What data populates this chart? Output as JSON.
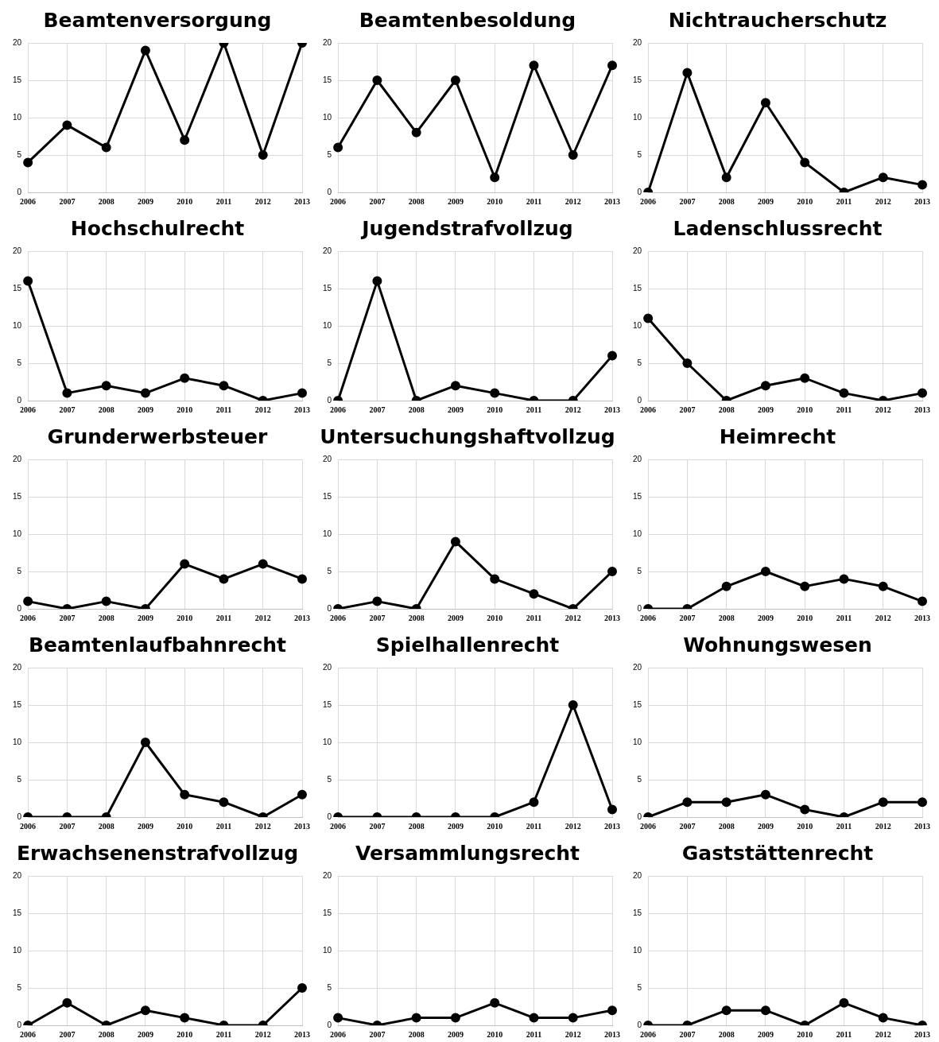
{
  "chart_data": [
    {
      "type": "line",
      "title": "Beamtenversorgung",
      "categories": [
        "2006",
        "2007",
        "2008",
        "2009",
        "2010",
        "2011",
        "2012",
        "2013"
      ],
      "series": [
        {
          "color": "#000000",
          "values": [
            4,
            9,
            6,
            19,
            7,
            20,
            5,
            20
          ]
        }
      ],
      "ylim": [
        0,
        20
      ],
      "yticks": [
        0,
        5,
        10,
        15,
        20
      ],
      "grid": true,
      "marker": "circle",
      "legend": false
    },
    {
      "type": "line",
      "title": "Beamtenbesoldung",
      "categories": [
        "2006",
        "2007",
        "2008",
        "2009",
        "2010",
        "2011",
        "2012",
        "2013"
      ],
      "series": [
        {
          "color": "#000000",
          "values": [
            6,
            15,
            8,
            15,
            2,
            17,
            5,
            17
          ]
        }
      ],
      "ylim": [
        0,
        20
      ],
      "yticks": [
        0,
        5,
        10,
        15,
        20
      ],
      "grid": true,
      "marker": "circle",
      "legend": false
    },
    {
      "type": "line",
      "title": "Nichtraucherschutz",
      "categories": [
        "2006",
        "2007",
        "2008",
        "2009",
        "2010",
        "2011",
        "2012",
        "2013"
      ],
      "series": [
        {
          "color": "#000000",
          "values": [
            0,
            16,
            2,
            12,
            4,
            0,
            2,
            1
          ]
        }
      ],
      "ylim": [
        0,
        20
      ],
      "yticks": [
        0,
        5,
        10,
        15,
        20
      ],
      "grid": true,
      "marker": "circle",
      "legend": false
    },
    {
      "type": "line",
      "title": "Hochschulrecht",
      "categories": [
        "2006",
        "2007",
        "2008",
        "2009",
        "2010",
        "2011",
        "2012",
        "2013"
      ],
      "series": [
        {
          "color": "#000000",
          "values": [
            16,
            1,
            2,
            1,
            3,
            2,
            0,
            1
          ]
        }
      ],
      "ylim": [
        0,
        20
      ],
      "yticks": [
        0,
        5,
        10,
        15,
        20
      ],
      "grid": true,
      "marker": "circle",
      "legend": false
    },
    {
      "type": "line",
      "title": "Jugendstrafvollzug",
      "categories": [
        "2006",
        "2007",
        "2008",
        "2009",
        "2010",
        "2011",
        "2012",
        "2013"
      ],
      "series": [
        {
          "color": "#000000",
          "values": [
            0,
            16,
            0,
            2,
            1,
            0,
            0,
            6
          ]
        }
      ],
      "ylim": [
        0,
        20
      ],
      "yticks": [
        0,
        5,
        10,
        15,
        20
      ],
      "grid": true,
      "marker": "circle",
      "legend": false
    },
    {
      "type": "line",
      "title": "Ladenschlussrecht",
      "categories": [
        "2006",
        "2007",
        "2008",
        "2009",
        "2010",
        "2011",
        "2012",
        "2013"
      ],
      "series": [
        {
          "color": "#000000",
          "values": [
            11,
            5,
            0,
            2,
            3,
            1,
            0,
            1
          ]
        }
      ],
      "ylim": [
        0,
        20
      ],
      "yticks": [
        0,
        5,
        10,
        15,
        20
      ],
      "grid": true,
      "marker": "circle",
      "legend": false
    },
    {
      "type": "line",
      "title": "Grunderwerbsteuer",
      "categories": [
        "2006",
        "2007",
        "2008",
        "2009",
        "2010",
        "2011",
        "2012",
        "2013"
      ],
      "series": [
        {
          "color": "#000000",
          "values": [
            1,
            0,
            1,
            0,
            6,
            4,
            6,
            4
          ]
        }
      ],
      "ylim": [
        0,
        20
      ],
      "yticks": [
        0,
        5,
        10,
        15,
        20
      ],
      "grid": true,
      "marker": "circle",
      "legend": false
    },
    {
      "type": "line",
      "title": "Untersuchungshaftvollzug",
      "categories": [
        "2006",
        "2007",
        "2008",
        "2009",
        "2010",
        "2011",
        "2012",
        "2013"
      ],
      "series": [
        {
          "color": "#000000",
          "values": [
            0,
            1,
            0,
            9,
            4,
            2,
            0,
            5
          ]
        }
      ],
      "ylim": [
        0,
        20
      ],
      "yticks": [
        0,
        5,
        10,
        15,
        20
      ],
      "grid": true,
      "marker": "circle",
      "legend": false
    },
    {
      "type": "line",
      "title": "Heimrecht",
      "categories": [
        "2006",
        "2007",
        "2008",
        "2009",
        "2010",
        "2011",
        "2012",
        "2013"
      ],
      "series": [
        {
          "color": "#000000",
          "values": [
            0,
            0,
            3,
            5,
            3,
            4,
            3,
            1
          ]
        }
      ],
      "ylim": [
        0,
        20
      ],
      "yticks": [
        0,
        5,
        10,
        15,
        20
      ],
      "grid": true,
      "marker": "circle",
      "legend": false
    },
    {
      "type": "line",
      "title": "Beamtenlaufbahnrecht",
      "categories": [
        "2006",
        "2007",
        "2008",
        "2009",
        "2010",
        "2011",
        "2012",
        "2013"
      ],
      "series": [
        {
          "color": "#000000",
          "values": [
            0,
            0,
            0,
            10,
            3,
            2,
            0,
            3
          ]
        }
      ],
      "ylim": [
        0,
        20
      ],
      "yticks": [
        0,
        5,
        10,
        15,
        20
      ],
      "grid": true,
      "marker": "circle",
      "legend": false
    },
    {
      "type": "line",
      "title": "Spielhallenrecht",
      "categories": [
        "2006",
        "2007",
        "2008",
        "2009",
        "2010",
        "2011",
        "2012",
        "2013"
      ],
      "series": [
        {
          "color": "#000000",
          "values": [
            0,
            0,
            0,
            0,
            0,
            2,
            15,
            1
          ]
        }
      ],
      "ylim": [
        0,
        20
      ],
      "yticks": [
        0,
        5,
        10,
        15,
        20
      ],
      "grid": true,
      "marker": "circle",
      "legend": false
    },
    {
      "type": "line",
      "title": "Wohnungswesen",
      "categories": [
        "2006",
        "2007",
        "2008",
        "2009",
        "2010",
        "2011",
        "2012",
        "2013"
      ],
      "series": [
        {
          "color": "#000000",
          "values": [
            0,
            2,
            2,
            3,
            1,
            0,
            2,
            2
          ]
        }
      ],
      "ylim": [
        0,
        20
      ],
      "yticks": [
        0,
        5,
        10,
        15,
        20
      ],
      "grid": true,
      "marker": "circle",
      "legend": false
    },
    {
      "type": "line",
      "title": "Erwachsenenstrafvollzug",
      "categories": [
        "2006",
        "2007",
        "2008",
        "2009",
        "2010",
        "2011",
        "2012",
        "2013"
      ],
      "series": [
        {
          "color": "#000000",
          "values": [
            0,
            3,
            0,
            2,
            1,
            0,
            0,
            5
          ]
        }
      ],
      "ylim": [
        0,
        20
      ],
      "yticks": [
        0,
        5,
        10,
        15,
        20
      ],
      "grid": true,
      "marker": "circle",
      "legend": false
    },
    {
      "type": "line",
      "title": "Versammlungsrecht",
      "categories": [
        "2006",
        "2007",
        "2008",
        "2009",
        "2010",
        "2011",
        "2012",
        "2013"
      ],
      "series": [
        {
          "color": "#000000",
          "values": [
            1,
            0,
            1,
            1,
            3,
            1,
            1,
            2
          ]
        }
      ],
      "ylim": [
        0,
        20
      ],
      "yticks": [
        0,
        5,
        10,
        15,
        20
      ],
      "grid": true,
      "marker": "circle",
      "legend": false
    },
    {
      "type": "line",
      "title": "Gaststättenrecht",
      "categories": [
        "2006",
        "2007",
        "2008",
        "2009",
        "2010",
        "2011",
        "2012",
        "2013"
      ],
      "series": [
        {
          "color": "#000000",
          "values": [
            0,
            0,
            2,
            2,
            0,
            3,
            1,
            0
          ]
        }
      ],
      "ylim": [
        0,
        20
      ],
      "yticks": [
        0,
        5,
        10,
        15,
        20
      ],
      "grid": true,
      "marker": "circle",
      "legend": false
    }
  ]
}
